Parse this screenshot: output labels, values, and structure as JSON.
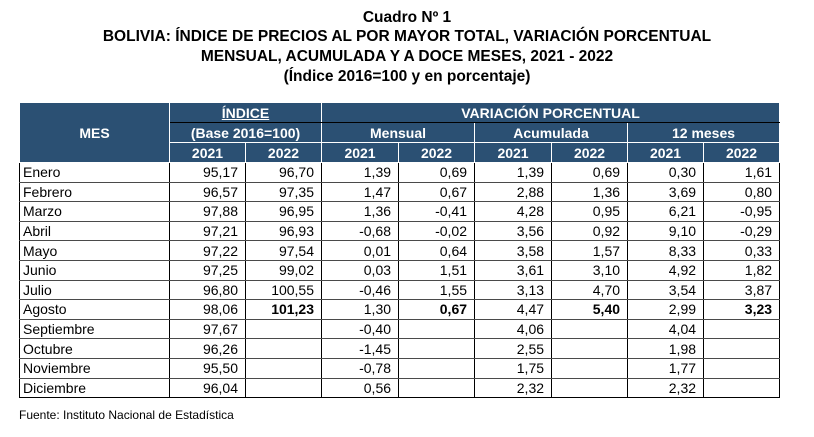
{
  "title": {
    "line1": "Cuadro Nº 1",
    "line2": "BOLIVIA: ÍNDICE DE PRECIOS AL POR MAYOR TOTAL, VARIACIÓN PORCENTUAL",
    "line3": "MENSUAL, ACUMULADA Y A DOCE MESES, 2021 - 2022",
    "line4": "(Índice 2016=100 y en porcentaje)"
  },
  "header": {
    "mes": "MES",
    "indice": "ÍNDICE",
    "base": "(Base 2016=100)",
    "variacion": "VARIACIÓN PORCENTUAL",
    "mensual": "Mensual",
    "acumulada": "Acumulada",
    "doce": "12 meses",
    "y2021": "2021",
    "y2022": "2022"
  },
  "rows": [
    {
      "mes": "Enero",
      "i21": "95,17",
      "i22": "96,70",
      "m21": "1,39",
      "m22": "0,69",
      "a21": "1,39",
      "a22": "0,69",
      "d21": "0,30",
      "d22": "1,61"
    },
    {
      "mes": "Febrero",
      "i21": "96,57",
      "i22": "97,35",
      "m21": "1,47",
      "m22": "0,67",
      "a21": "2,88",
      "a22": "1,36",
      "d21": "3,69",
      "d22": "0,80"
    },
    {
      "mes": "Marzo",
      "i21": "97,88",
      "i22": "96,95",
      "m21": "1,36",
      "m22": "-0,41",
      "a21": "4,28",
      "a22": "0,95",
      "d21": "6,21",
      "d22": "-0,95"
    },
    {
      "mes": "Abril",
      "i21": "97,21",
      "i22": "96,93",
      "m21": "-0,68",
      "m22": "-0,02",
      "a21": "3,56",
      "a22": "0,92",
      "d21": "9,10",
      "d22": "-0,29"
    },
    {
      "mes": "Mayo",
      "i21": "97,22",
      "i22": "97,54",
      "m21": "0,01",
      "m22": "0,64",
      "a21": "3,58",
      "a22": "1,57",
      "d21": "8,33",
      "d22": "0,33"
    },
    {
      "mes": "Junio",
      "i21": "97,25",
      "i22": "99,02",
      "m21": "0,03",
      "m22": "1,51",
      "a21": "3,61",
      "a22": "3,10",
      "d21": "4,92",
      "d22": "1,82"
    },
    {
      "mes": "Julio",
      "i21": "96,80",
      "i22": "100,55",
      "m21": "-0,46",
      "m22": "1,55",
      "a21": "3,13",
      "a22": "4,70",
      "d21": "3,54",
      "d22": "3,87"
    },
    {
      "mes": "Agosto",
      "i21": "98,06",
      "i22": "101,23",
      "m21": "1,30",
      "m22": "0,67",
      "a21": "4,47",
      "a22": "5,40",
      "d21": "2,99",
      "d22": "3,23"
    },
    {
      "mes": "Septiembre",
      "i21": "97,67",
      "i22": "",
      "m21": "-0,40",
      "m22": "",
      "a21": "4,06",
      "a22": "",
      "d21": "4,04",
      "d22": ""
    },
    {
      "mes": "Octubre",
      "i21": "96,26",
      "i22": "",
      "m21": "-1,45",
      "m22": "",
      "a21": "2,55",
      "a22": "",
      "d21": "1,98",
      "d22": ""
    },
    {
      "mes": "Noviembre",
      "i21": "95,50",
      "i22": "",
      "m21": "-0,78",
      "m22": "",
      "a21": "1,75",
      "a22": "",
      "d21": "1,77",
      "d22": ""
    },
    {
      "mes": "Diciembre",
      "i21": "96,04",
      "i22": "",
      "m21": "0,56",
      "m22": "",
      "a21": "2,32",
      "a22": "",
      "d21": "2,32",
      "d22": ""
    }
  ],
  "bold_row": "Agosto",
  "source": "Fuente: Instituto Nacional de Estadística",
  "colors": {
    "header_bg": "#2b5073",
    "header_text": "#ffffff"
  }
}
